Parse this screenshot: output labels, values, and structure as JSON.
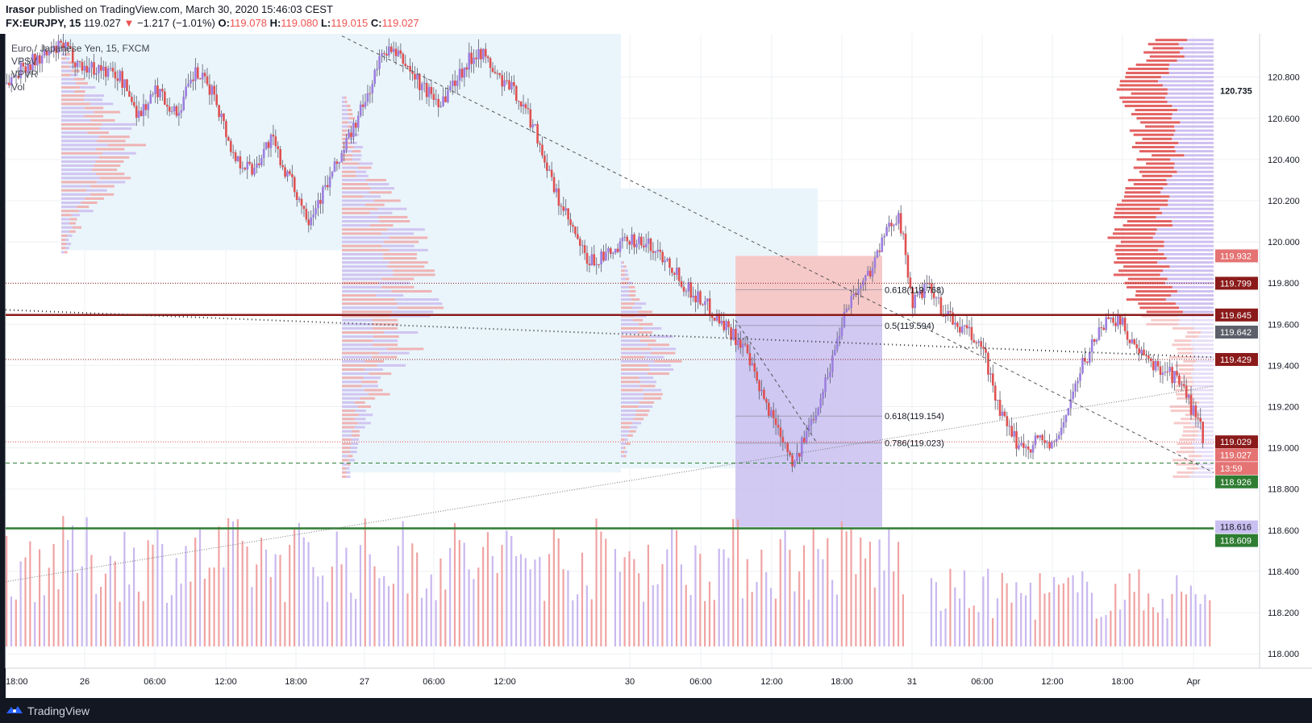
{
  "header": {
    "author": "Irasor",
    "published_text": "published on TradingView.com, March 30, 2020 15:46:03 CEST",
    "symbol": "FX:EURJPY, 15",
    "last": "119.027",
    "change_arrow": "▼",
    "change": "−1.217 (−1.01%)",
    "o_label": "O:",
    "o_value": "119.078",
    "h_label": "H:",
    "h_value": "119.080",
    "l_label": "L:",
    "l_value": "119.015",
    "c_label": "C:",
    "c_value": "119.027"
  },
  "legend": {
    "title": "Euro / Japanese Yen, 15, FXCM",
    "indicators": [
      "VPSV",
      "VPVR",
      "Vol"
    ]
  },
  "footer": {
    "brand": "TradingView"
  },
  "colors": {
    "bull": "#9c7ee0",
    "bear": "#e05050",
    "up_vol": "#c9b8ef",
    "down_vol": "#f0a3a3",
    "vp_blue_zone": "#eaf5fb",
    "target_zone": "#f6c9c9",
    "stop_zone": "#c9bff0",
    "resistance": "#8b1a1a",
    "support": "#2e7d32"
  },
  "chart_data": {
    "type": "candlestick",
    "symbol": "EURJPY",
    "timeframe": "15",
    "x_ticks": [
      "18:00",
      "26",
      "06:00",
      "12:00",
      "18:00",
      "27",
      "06:00",
      "12:00",
      "30",
      "06:00",
      "12:00",
      "18:00",
      "31",
      "06:00",
      "12:00",
      "18:00",
      "Apr"
    ],
    "y_ticks": [
      120.8,
      120.6,
      120.4,
      120.2,
      120.0,
      119.8,
      119.6,
      119.4,
      119.2,
      119.0,
      118.8,
      118.6,
      118.4,
      118.2,
      118.0
    ],
    "ylim": [
      117.93,
      121.01
    ],
    "price_labels": [
      {
        "value": "120.735",
        "kind": "plain"
      },
      {
        "value": "119.932",
        "kind": "red"
      },
      {
        "value": "119.799",
        "kind": "darkred"
      },
      {
        "value": "119.645",
        "kind": "darkred"
      },
      {
        "value": "119.642",
        "kind": "gray"
      },
      {
        "value": "119.429",
        "kind": "darkred"
      },
      {
        "value": "119.029",
        "kind": "darkred"
      },
      {
        "value": "119.027",
        "kind": "red"
      },
      {
        "value": "13:59",
        "kind": "red"
      },
      {
        "value": "118.926",
        "kind": "green"
      },
      {
        "value": "118.616",
        "kind": "lavender"
      },
      {
        "value": "118.609",
        "kind": "green"
      }
    ],
    "fib_levels": [
      {
        "ratio": "0.618",
        "price": 119.768,
        "label": "0.618(119.768)"
      },
      {
        "ratio": "0.5",
        "price": 119.594,
        "label": "0.5(119.594)"
      },
      {
        "ratio": "0.618",
        "price": 119.154,
        "label": "0.618(119.154)"
      },
      {
        "ratio": "0.786",
        "price": 119.023,
        "label": "0.786(119.023)"
      }
    ],
    "horizontal_levels": [
      {
        "price": 119.645,
        "style": "solid",
        "color": "#8b1a1a"
      },
      {
        "price": 119.799,
        "style": "dotted",
        "color": "#8b1a1a"
      },
      {
        "price": 119.429,
        "style": "dotted",
        "color": "#8b1a1a"
      },
      {
        "price": 119.029,
        "style": "dotted",
        "color": "#e05050"
      },
      {
        "price": 118.926,
        "style": "dashed",
        "color": "#2e7d32"
      },
      {
        "price": 118.609,
        "style": "solid",
        "color": "#2e7d32"
      }
    ],
    "position_tool": {
      "entry": 119.645,
      "target": 119.932,
      "stop": 118.616
    },
    "close_path": [
      [
        0,
        120.77
      ],
      [
        8,
        120.86
      ],
      [
        16,
        120.9
      ],
      [
        24,
        120.95
      ],
      [
        32,
        120.85
      ],
      [
        40,
        120.84
      ],
      [
        48,
        120.8
      ],
      [
        56,
        120.62
      ],
      [
        64,
        120.74
      ],
      [
        72,
        120.62
      ],
      [
        80,
        120.82
      ],
      [
        88,
        120.72
      ],
      [
        96,
        120.42
      ],
      [
        104,
        120.35
      ],
      [
        112,
        120.5
      ],
      [
        120,
        120.3
      ],
      [
        128,
        120.12
      ],
      [
        136,
        120.28
      ],
      [
        144,
        120.48
      ],
      [
        152,
        120.68
      ],
      [
        160,
        120.94
      ],
      [
        168,
        120.88
      ],
      [
        176,
        120.75
      ],
      [
        184,
        120.68
      ],
      [
        192,
        120.82
      ],
      [
        200,
        120.94
      ],
      [
        208,
        120.8
      ],
      [
        216,
        120.72
      ],
      [
        224,
        120.55
      ],
      [
        232,
        120.25
      ],
      [
        240,
        120.05
      ],
      [
        246,
        119.9
      ],
      [
        252,
        119.92
      ],
      [
        258,
        119.95
      ],
      [
        264,
        120.02
      ],
      [
        272,
        119.98
      ],
      [
        280,
        119.92
      ],
      [
        288,
        119.78
      ],
      [
        296,
        119.7
      ],
      [
        304,
        119.6
      ],
      [
        312,
        119.5
      ],
      [
        320,
        119.25
      ],
      [
        328,
        119.08
      ],
      [
        334,
        118.92
      ],
      [
        340,
        119.1
      ],
      [
        348,
        119.35
      ],
      [
        356,
        119.7
      ],
      [
        364,
        119.82
      ],
      [
        372,
        120.02
      ],
      [
        378,
        120.15
      ],
      [
        384,
        119.7
      ],
      [
        390,
        119.78
      ],
      [
        396,
        119.68
      ],
      [
        402,
        119.6
      ],
      [
        408,
        119.55
      ],
      [
        414,
        119.48
      ],
      [
        420,
        119.2
      ],
      [
        426,
        119.05
      ],
      [
        432,
        119.0
      ],
      [
        438,
        119.05
      ],
      [
        444,
        119.0
      ],
      [
        450,
        119.2
      ],
      [
        456,
        119.4
      ],
      [
        462,
        119.55
      ],
      [
        468,
        119.65
      ],
      [
        474,
        119.58
      ],
      [
        480,
        119.45
      ],
      [
        486,
        119.4
      ],
      [
        492,
        119.38
      ],
      [
        498,
        119.3
      ],
      [
        504,
        119.15
      ],
      [
        508,
        119.03
      ]
    ],
    "volume_heights": [
      0.42,
      0.58,
      0.35,
      0.66,
      0.5,
      0.72,
      0.45,
      0.6,
      0.38,
      0.55,
      0.7,
      0.48,
      0.63,
      0.52,
      0.4,
      0.75,
      0.5,
      0.62,
      0.44,
      0.58
    ]
  }
}
